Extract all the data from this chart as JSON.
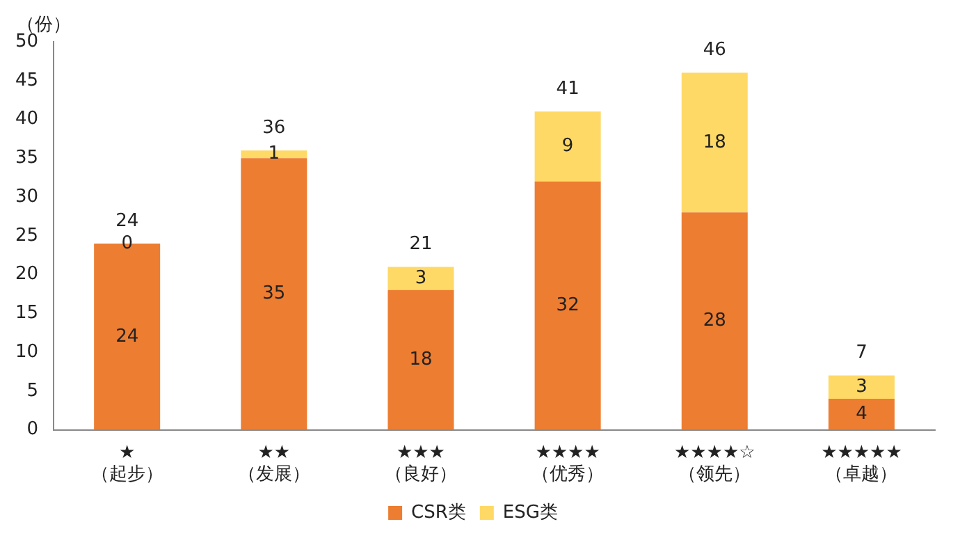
{
  "chart_data": {
    "type": "bar",
    "ylabel": "（份）",
    "categories": [
      "★\n（起步）",
      "★★\n（发展）",
      "★★★\n（良好）",
      "★★★★\n（优秀）",
      "★★★★☆\n（领先）",
      "★★★★★\n（卓越）"
    ],
    "series": [
      {
        "name": "CSR类",
        "color": "#ed7d31",
        "values": [
          24,
          35,
          18,
          32,
          28,
          4
        ]
      },
      {
        "name": "ESG类",
        "color": "#ffd966",
        "values": [
          0,
          1,
          3,
          9,
          18,
          3
        ]
      }
    ],
    "stacked": true,
    "ylim": [
      0,
      50
    ],
    "yticks": [
      0,
      5,
      10,
      15,
      20,
      25,
      30,
      35,
      40,
      45,
      50
    ],
    "grid": false,
    "legend": "bottom",
    "data_labels": true,
    "totals": [
      "24",
      "36",
      "21",
      "41",
      "46",
      "7"
    ]
  }
}
